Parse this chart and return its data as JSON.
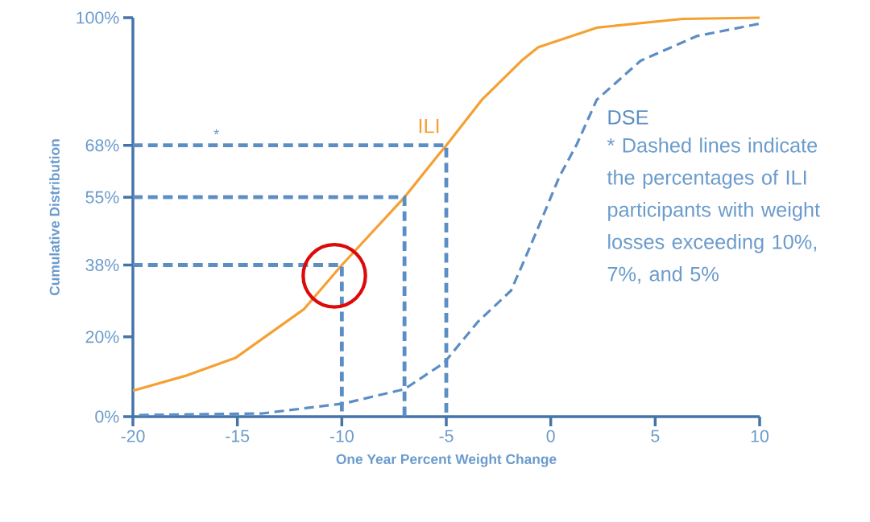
{
  "chart_data": {
    "type": "line",
    "xlabel": "One Year Percent Weight Change",
    "ylabel": "Cumulative Distribution",
    "xlim": [
      -20,
      10
    ],
    "ylim": [
      0,
      100
    ],
    "xticks": [
      -20,
      -15,
      -10,
      -5,
      0,
      5,
      10
    ],
    "yticks": [
      {
        "value": 0,
        "label": "0%"
      },
      {
        "value": 20,
        "label": "20%"
      },
      {
        "value": 38,
        "label": "38%"
      },
      {
        "value": 55,
        "label": "55%"
      },
      {
        "value": 68,
        "label": "68%"
      },
      {
        "value": 100,
        "label": "100%"
      }
    ],
    "series": [
      {
        "name": "ILI",
        "color": "#f5a033",
        "line_style": "solid",
        "x": [
          -20,
          -17.5,
          -15.1,
          -11.8,
          -10,
          -7,
          -5.5,
          -5,
          -3.3,
          -1.4,
          -0.6,
          2.2,
          6.3,
          10
        ],
        "values": [
          6.5,
          10.2,
          14.7,
          27,
          38,
          55,
          64.8,
          68,
          79.4,
          89.2,
          92.6,
          97.5,
          99.7,
          100
        ]
      },
      {
        "name": "DSE",
        "color": "#5b8ec4",
        "line_style": "dashed",
        "x": [
          -19.7,
          -13.8,
          -9.9,
          -7,
          -5.1,
          -3.5,
          -1.9,
          -1.2,
          -0.6,
          0.4,
          1.25,
          2.2,
          4.3,
          7,
          10
        ],
        "values": [
          0.4,
          0.8,
          3.3,
          6.9,
          13.5,
          23.7,
          31.6,
          40,
          47.4,
          60,
          68.3,
          79.4,
          89.2,
          95.4,
          98.5
        ]
      },
      {
        "color": "#5b8ec4",
        "line_style": "dashed",
        "x": [
          -20,
          -10,
          -10
        ],
        "values": [
          38,
          38,
          0
        ]
      },
      {
        "color": "#5b8ec4",
        "line_style": "dashed",
        "x": [
          -20,
          -7,
          -7
        ],
        "values": [
          55,
          55,
          0
        ]
      },
      {
        "color": "#5b8ec4",
        "line_style": "dashed",
        "x": [
          -20,
          -5,
          -5
        ],
        "values": [
          68,
          68,
          0
        ]
      }
    ],
    "annotations": [
      {
        "text": "*",
        "x": -16,
        "y": 68
      },
      "* Dashed lines indicate the percentages of ILI participants with weight losses exceeding 10%, 7%, and 5%"
    ]
  }
}
